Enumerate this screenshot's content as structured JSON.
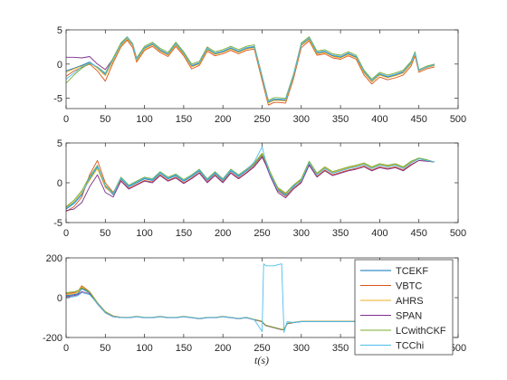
{
  "colors": [
    "#0072bd",
    "#d95319",
    "#edb120",
    "#7e2f8e",
    "#77ac30",
    "#4dbeee"
  ],
  "chart_data": [
    {
      "type": "line",
      "title": "",
      "xlabel": "",
      "ylabel": "",
      "xlim": [
        0,
        500
      ],
      "ylim": [
        -6.5,
        5
      ],
      "xticks": [
        "0",
        "50",
        "100",
        "150",
        "200",
        "250",
        "300",
        "350",
        "400",
        "450",
        "500"
      ],
      "yticks": [
        "5",
        "0",
        "-5"
      ],
      "ytick_values": [
        5,
        0,
        -5
      ],
      "grid": false,
      "x": [
        0,
        10,
        20,
        30,
        40,
        50,
        60,
        70,
        78,
        85,
        90,
        100,
        110,
        120,
        130,
        140,
        150,
        160,
        170,
        180,
        190,
        200,
        210,
        220,
        230,
        240,
        250,
        258,
        265,
        270,
        280,
        290,
        300,
        310,
        320,
        330,
        340,
        350,
        360,
        370,
        380,
        390,
        400,
        410,
        420,
        430,
        440,
        445,
        450,
        460,
        470
      ],
      "series": [
        {
          "values": [
            -1.0,
            -0.6,
            -0.2,
            0.3,
            -0.5,
            -1.5,
            0.6,
            2.8,
            3.8,
            2.8,
            0.6,
            2.3,
            2.9,
            2.0,
            1.4,
            2.9,
            1.5,
            -0.3,
            0.1,
            2.2,
            1.5,
            1.8,
            2.3,
            1.8,
            2.3,
            2.5,
            -2.0,
            -5.6,
            -5.2,
            -5.2,
            -5.3,
            -1.8,
            2.8,
            3.7,
            1.6,
            1.8,
            1.2,
            1.0,
            1.5,
            1.0,
            -1.2,
            -2.5,
            -1.5,
            -1.9,
            -1.6,
            -1.2,
            0.1,
            1.5,
            -1.0,
            -0.5,
            -0.2
          ]
        },
        {
          "values": [
            -1.8,
            -1.0,
            -0.5,
            0.0,
            -1.0,
            -2.5,
            0.2,
            2.5,
            3.5,
            2.4,
            0.3,
            2.0,
            2.6,
            1.7,
            1.1,
            2.6,
            1.2,
            -0.7,
            -0.2,
            1.9,
            1.2,
            1.5,
            2.0,
            1.5,
            2.0,
            2.2,
            -2.4,
            -6.0,
            -5.6,
            -5.6,
            -5.7,
            -2.2,
            2.4,
            3.4,
            1.3,
            1.5,
            0.9,
            0.7,
            1.2,
            0.7,
            -1.6,
            -2.9,
            -1.9,
            -2.3,
            -2.0,
            -1.6,
            -0.3,
            1.2,
            -1.2,
            -0.7,
            -0.4
          ]
        },
        {
          "values": [
            -1.2,
            -0.7,
            -0.3,
            0.2,
            -0.6,
            -1.7,
            0.5,
            2.7,
            3.7,
            2.7,
            0.5,
            2.2,
            2.8,
            1.9,
            1.3,
            2.8,
            1.4,
            -0.4,
            0.0,
            2.1,
            1.4,
            1.7,
            2.2,
            1.7,
            2.2,
            2.4,
            -2.1,
            -5.7,
            -5.3,
            -5.3,
            -5.4,
            -1.9,
            2.7,
            3.6,
            1.5,
            1.7,
            1.1,
            0.9,
            1.4,
            0.9,
            -1.3,
            -2.6,
            -1.6,
            -2.0,
            -1.7,
            -1.3,
            0.0,
            1.4,
            -1.0,
            -0.5,
            -0.2
          ]
        },
        {
          "values": [
            1.0,
            1.0,
            0.9,
            1.1,
            0.0,
            -0.8,
            0.8,
            3.0,
            3.9,
            2.9,
            0.8,
            2.4,
            3.0,
            2.1,
            1.5,
            3.0,
            1.6,
            -0.2,
            0.2,
            2.3,
            1.6,
            1.9,
            2.4,
            1.9,
            2.4,
            2.6,
            -1.9,
            -5.5,
            -5.1,
            -5.1,
            -5.2,
            -1.7,
            2.9,
            3.8,
            1.7,
            1.9,
            1.3,
            1.1,
            1.6,
            1.1,
            -1.1,
            -2.4,
            -1.4,
            -1.8,
            -1.5,
            -1.1,
            0.2,
            1.6,
            -0.9,
            -0.4,
            -0.1
          ]
        },
        {
          "values": [
            -2.8,
            -1.6,
            -0.6,
            0.1,
            -0.4,
            -1.3,
            0.9,
            3.1,
            4.0,
            3.0,
            0.9,
            2.6,
            3.2,
            2.3,
            1.7,
            3.2,
            1.8,
            0.0,
            0.4,
            2.5,
            1.8,
            2.1,
            2.6,
            2.1,
            2.6,
            2.8,
            -1.7,
            -5.3,
            -4.9,
            -4.9,
            -5.0,
            -1.5,
            3.1,
            4.0,
            1.9,
            2.1,
            1.5,
            1.3,
            1.8,
            1.3,
            -0.9,
            -2.2,
            -1.2,
            -1.6,
            -1.3,
            -0.9,
            0.4,
            1.8,
            -0.8,
            -0.3,
            0.0
          ]
        },
        {
          "values": [
            -2.2,
            -1.3,
            -0.4,
            0.2,
            -0.5,
            -1.4,
            0.7,
            2.9,
            3.9,
            2.9,
            0.7,
            2.4,
            3.0,
            2.1,
            1.5,
            3.0,
            1.6,
            -0.2,
            0.2,
            2.3,
            1.6,
            1.9,
            2.4,
            1.9,
            2.4,
            2.6,
            -1.9,
            -5.5,
            -5.1,
            -5.1,
            -5.2,
            -1.7,
            2.9,
            3.8,
            1.7,
            1.9,
            1.3,
            1.1,
            1.6,
            1.1,
            -1.1,
            -2.4,
            -1.4,
            -1.8,
            -1.5,
            -1.1,
            0.2,
            1.6,
            -0.9,
            -0.4,
            -0.1
          ]
        }
      ]
    },
    {
      "type": "line",
      "title": "",
      "xlabel": "",
      "ylabel": "",
      "xlim": [
        0,
        500
      ],
      "ylim": [
        -5,
        5
      ],
      "xticks": [
        "0",
        "50",
        "100",
        "150",
        "200",
        "250",
        "300",
        "350",
        "400",
        "450",
        "500"
      ],
      "yticks": [
        "5",
        "0",
        "-5"
      ],
      "ytick_values": [
        5,
        0,
        -5
      ],
      "grid": false,
      "x": [
        0,
        10,
        20,
        30,
        40,
        50,
        60,
        70,
        80,
        90,
        100,
        110,
        120,
        130,
        140,
        150,
        160,
        170,
        180,
        190,
        200,
        210,
        220,
        230,
        240,
        250,
        255,
        260,
        270,
        280,
        290,
        300,
        310,
        320,
        330,
        340,
        350,
        360,
        370,
        380,
        390,
        400,
        410,
        420,
        430,
        440,
        450,
        460,
        470
      ],
      "series": [
        {
          "values": [
            -3.3,
            -2.6,
            -1.5,
            0.5,
            2.0,
            -0.5,
            -1.5,
            0.5,
            -0.5,
            0.0,
            0.5,
            0.3,
            1.2,
            0.5,
            0.9,
            0.2,
            0.8,
            1.5,
            0.3,
            1.2,
            0.3,
            1.5,
            0.8,
            1.5,
            2.3,
            3.5,
            2.5,
            1.2,
            -0.8,
            -1.5,
            -0.5,
            0.3,
            2.5,
            1.0,
            1.8,
            1.2,
            1.5,
            1.8,
            2.0,
            2.3,
            1.8,
            2.2,
            2.0,
            2.2,
            1.8,
            2.5,
            3.0,
            2.8,
            2.6
          ]
        },
        {
          "values": [
            -3.6,
            -3.0,
            -1.8,
            1.0,
            2.8,
            0.0,
            -1.2,
            0.3,
            -0.7,
            -0.2,
            0.3,
            0.1,
            1.0,
            0.3,
            0.7,
            0.0,
            0.6,
            1.3,
            0.1,
            1.0,
            0.1,
            1.3,
            0.6,
            1.3,
            2.1,
            3.3,
            2.3,
            1.0,
            -1.0,
            -1.7,
            -0.7,
            0.1,
            2.3,
            0.8,
            1.6,
            1.0,
            1.3,
            1.6,
            1.8,
            2.1,
            1.6,
            2.0,
            1.8,
            2.0,
            1.6,
            2.3,
            2.8,
            2.7,
            2.6
          ]
        },
        {
          "values": [
            -3.1,
            -2.4,
            -1.2,
            0.3,
            1.8,
            -0.6,
            -1.4,
            0.6,
            -0.4,
            0.1,
            0.6,
            0.4,
            1.3,
            0.6,
            1.0,
            0.3,
            0.9,
            1.6,
            0.4,
            1.3,
            0.4,
            1.6,
            0.9,
            1.6,
            2.4,
            3.6,
            2.6,
            1.3,
            -0.7,
            -1.4,
            -0.4,
            0.4,
            2.6,
            1.1,
            1.9,
            1.3,
            1.6,
            1.9,
            2.1,
            2.4,
            1.9,
            2.3,
            2.1,
            2.3,
            1.9,
            2.6,
            3.0,
            2.8,
            2.6
          ]
        },
        {
          "values": [
            -3.5,
            -3.3,
            -2.5,
            -0.5,
            1.0,
            -1.2,
            -1.8,
            0.2,
            -0.8,
            -0.3,
            0.2,
            0.0,
            0.9,
            0.2,
            0.6,
            -0.1,
            0.5,
            1.2,
            0.0,
            0.9,
            0.0,
            1.2,
            0.5,
            1.2,
            2.0,
            3.2,
            2.2,
            0.9,
            -1.2,
            -1.9,
            -0.8,
            0.0,
            2.2,
            0.7,
            1.5,
            0.9,
            1.2,
            1.5,
            1.7,
            2.0,
            1.5,
            1.9,
            1.7,
            1.9,
            1.5,
            2.2,
            2.8,
            2.7,
            2.6
          ]
        },
        {
          "values": [
            -3.0,
            -2.2,
            -1.0,
            0.8,
            2.2,
            -0.3,
            -1.3,
            0.7,
            -0.3,
            0.2,
            0.7,
            0.5,
            1.4,
            0.7,
            1.1,
            0.4,
            1.0,
            1.7,
            0.5,
            1.4,
            0.5,
            1.7,
            1.0,
            1.7,
            2.5,
            3.7,
            2.7,
            1.4,
            -0.6,
            -1.3,
            -0.3,
            0.5,
            2.7,
            1.2,
            2.0,
            1.4,
            1.7,
            2.0,
            2.2,
            2.5,
            2.0,
            2.4,
            2.2,
            2.4,
            2.0,
            2.7,
            3.1,
            2.9,
            2.6
          ]
        },
        {
          "values": [
            -3.2,
            -2.5,
            -1.4,
            0.6,
            2.1,
            -0.4,
            -1.4,
            0.6,
            -0.4,
            0.1,
            0.6,
            0.4,
            1.3,
            0.6,
            1.0,
            0.3,
            0.9,
            1.6,
            0.4,
            1.3,
            0.4,
            1.6,
            0.9,
            1.6,
            2.6,
            4.5,
            2.6,
            1.1,
            -0.9,
            -1.6,
            -0.4,
            0.2,
            2.5,
            1.0,
            1.8,
            1.2,
            1.5,
            1.8,
            2.0,
            2.3,
            1.8,
            2.2,
            2.0,
            2.2,
            1.8,
            2.5,
            3.0,
            2.8,
            2.6
          ]
        }
      ]
    },
    {
      "type": "line",
      "title": "",
      "xlabel": "t(s)",
      "ylabel": "",
      "xlim": [
        0,
        500
      ],
      "ylim": [
        -200,
        200
      ],
      "xticks": [
        "0",
        "50",
        "100",
        "150",
        "200",
        "250",
        "300",
        "350",
        "400",
        "450",
        "500"
      ],
      "yticks": [
        "200",
        "0",
        "-200"
      ],
      "ytick_values": [
        200,
        0,
        -200
      ],
      "grid": false,
      "legend_position": "top-right",
      "x": [
        0,
        10,
        15,
        20,
        25,
        30,
        40,
        50,
        60,
        70,
        80,
        90,
        100,
        110,
        120,
        130,
        140,
        150,
        160,
        170,
        180,
        190,
        200,
        210,
        220,
        230,
        240,
        250,
        252,
        255,
        265,
        275,
        278,
        282,
        290,
        300,
        320,
        340,
        360,
        380,
        400,
        420,
        440,
        460,
        472
      ],
      "series": [
        {
          "name": "TCEKF",
          "values": [
            10,
            15,
            20,
            45,
            35,
            25,
            -30,
            -75,
            -95,
            -100,
            -100,
            -95,
            -100,
            -100,
            -95,
            -100,
            -100,
            -95,
            -100,
            -105,
            -100,
            -100,
            -95,
            -100,
            -105,
            -100,
            -110,
            -120,
            -130,
            -140,
            -150,
            -160,
            -160,
            -130,
            -125,
            -120,
            -120,
            -120,
            -120,
            -120,
            -120,
            -120,
            -120,
            -120,
            -120
          ]
        },
        {
          "name": "VBTC",
          "values": [
            20,
            25,
            30,
            60,
            45,
            30,
            -25,
            -70,
            -92,
            -98,
            -99,
            -94,
            -99,
            -99,
            -94,
            -99,
            -99,
            -94,
            -99,
            -104,
            -99,
            -99,
            -94,
            -99,
            -104,
            -99,
            -109,
            -119,
            -129,
            -139,
            -149,
            -159,
            -159,
            -129,
            -124,
            -119,
            -119,
            -119,
            -119,
            -119,
            -119,
            -119,
            -119,
            -119,
            -119
          ]
        },
        {
          "name": "AHRS",
          "values": [
            15,
            20,
            28,
            55,
            40,
            28,
            -28,
            -72,
            -94,
            -99,
            -100,
            -95,
            -100,
            -100,
            -95,
            -100,
            -100,
            -95,
            -100,
            -105,
            -100,
            -100,
            -95,
            -100,
            -105,
            -100,
            -110,
            -120,
            -130,
            -140,
            -150,
            -160,
            -160,
            -130,
            -125,
            -120,
            -120,
            -120,
            -120,
            -120,
            -120,
            -120,
            -120,
            -120,
            -120
          ]
        },
        {
          "name": "SPAN",
          "values": [
            5,
            10,
            15,
            30,
            25,
            20,
            -32,
            -76,
            -96,
            -100,
            -101,
            -96,
            -101,
            -101,
            -96,
            -101,
            -101,
            -96,
            -101,
            -106,
            -101,
            -101,
            -96,
            -101,
            -106,
            -101,
            -111,
            -121,
            -131,
            -141,
            -151,
            -161,
            -161,
            -131,
            -126,
            -121,
            -121,
            -121,
            -121,
            -121,
            -121,
            -121,
            -121,
            -121,
            -121
          ]
        },
        {
          "name": "LCwithCKF",
          "values": [
            25,
            30,
            35,
            50,
            40,
            30,
            -26,
            -71,
            -93,
            -99,
            -99,
            -94,
            -99,
            -99,
            -94,
            -99,
            -99,
            -94,
            -99,
            -104,
            -99,
            -99,
            -94,
            -99,
            -104,
            -99,
            -109,
            -119,
            -129,
            -139,
            -149,
            -159,
            -159,
            -129,
            -124,
            -119,
            -119,
            -119,
            -119,
            -119,
            -119,
            -119,
            -119,
            -119,
            -119
          ]
        },
        {
          "name": "TCChi",
          "values": [
            0,
            5,
            10,
            25,
            20,
            15,
            -30,
            -75,
            -95,
            -100,
            -100,
            -95,
            -100,
            -100,
            -95,
            -100,
            -100,
            -95,
            -100,
            -105,
            -100,
            -100,
            -95,
            -100,
            -105,
            -100,
            -110,
            -170,
            170,
            160,
            160,
            170,
            -175,
            -120,
            -125,
            -120,
            -120,
            -120,
            -120,
            -120,
            -120,
            -120,
            -120,
            -120,
            -120
          ]
        }
      ]
    }
  ]
}
